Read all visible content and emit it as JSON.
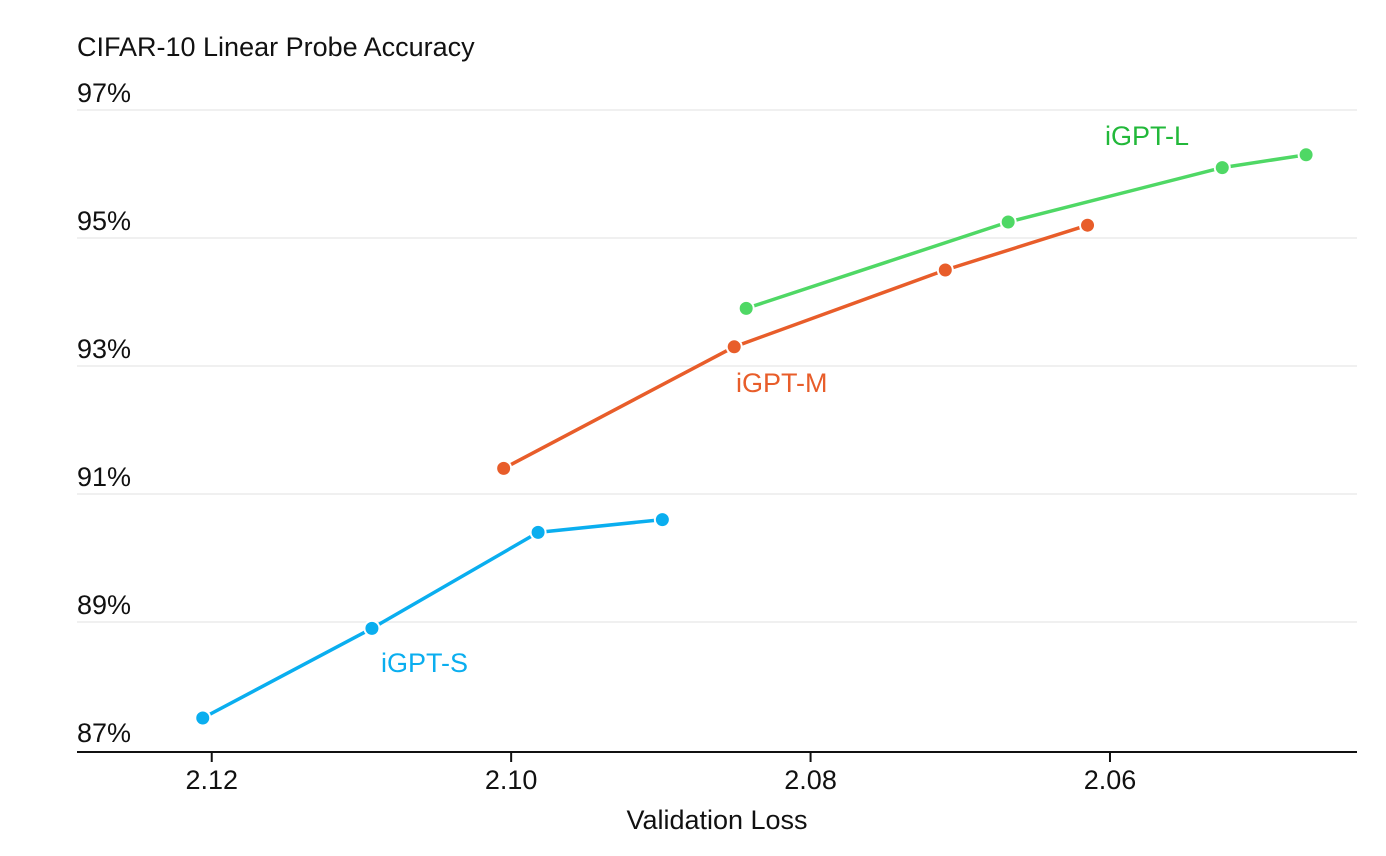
{
  "chart_data": {
    "type": "line",
    "title": "CIFAR-10 Linear Probe Accuracy",
    "xlabel": "Validation Loss",
    "ylabel": "",
    "x_reversed": true,
    "xlim": [
      2.129,
      2.0435
    ],
    "ylim": [
      86.7,
      97.3
    ],
    "xticks": [
      2.12,
      2.1,
      2.08,
      2.06
    ],
    "xtick_labels": [
      "2.12",
      "2.10",
      "2.08",
      "2.06"
    ],
    "yticks": [
      87,
      89,
      91,
      93,
      95,
      97
    ],
    "ytick_labels": [
      "87%",
      "89%",
      "91%",
      "93%",
      "95%",
      "97%"
    ],
    "grid": true,
    "series": [
      {
        "name": "iGPT-S",
        "color": "#0aaeef",
        "points": [
          {
            "x": 2.1206,
            "y": 87.5
          },
          {
            "x": 2.1093,
            "y": 88.9
          },
          {
            "x": 2.0982,
            "y": 90.4
          },
          {
            "x": 2.0899,
            "y": 90.6
          }
        ]
      },
      {
        "name": "iGPT-M",
        "color": "#e85d2a",
        "points": [
          {
            "x": 2.1005,
            "y": 91.4
          },
          {
            "x": 2.0851,
            "y": 93.3
          },
          {
            "x": 2.071,
            "y": 94.5
          },
          {
            "x": 2.0615,
            "y": 95.2
          }
        ]
      },
      {
        "name": "iGPT-L",
        "color": "#4fd865",
        "label_color": "#22b83a",
        "points": [
          {
            "x": 2.0843,
            "y": 93.9
          },
          {
            "x": 2.0668,
            "y": 95.25
          },
          {
            "x": 2.0525,
            "y": 96.1
          },
          {
            "x": 2.0469,
            "y": 96.3
          }
        ]
      }
    ]
  }
}
